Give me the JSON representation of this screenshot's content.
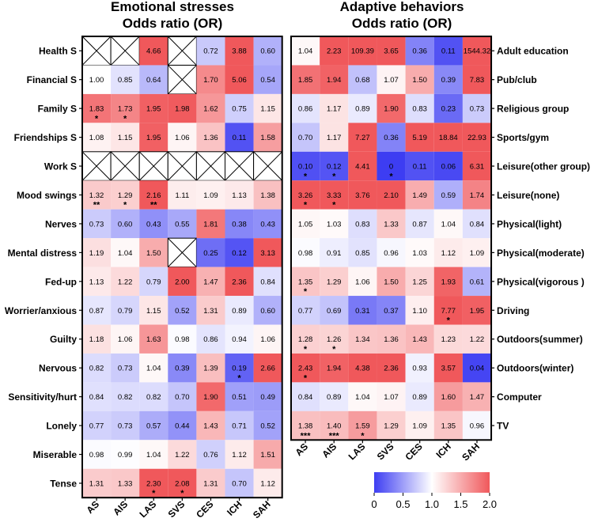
{
  "chart_data": [
    {
      "type": "heatmap",
      "title": "Emotional stresses",
      "subtitle": "Odds ratio (OR)",
      "columns": [
        "AS",
        "AIS",
        "LAS",
        "SVS",
        "CES",
        "ICH",
        "SAH"
      ],
      "rows": [
        {
          "label": "Health S",
          "values": [
            null,
            null,
            4.66,
            null,
            0.72,
            3.88,
            0.6
          ],
          "stars": [
            "",
            "",
            "",
            "",
            "",
            "",
            ""
          ]
        },
        {
          "label": "Financial S",
          "values": [
            1.0,
            0.85,
            0.64,
            null,
            1.7,
            5.06,
            0.54
          ],
          "stars": [
            "",
            "",
            "",
            "",
            "",
            "",
            ""
          ]
        },
        {
          "label": "Family S",
          "values": [
            1.83,
            1.73,
            1.95,
            1.98,
            1.62,
            0.75,
            1.15
          ],
          "stars": [
            "*",
            "*",
            "",
            "",
            "",
            "",
            ""
          ]
        },
        {
          "label": "Friendships S",
          "values": [
            1.08,
            1.15,
            1.95,
            1.06,
            1.36,
            0.11,
            1.58
          ],
          "stars": [
            "",
            "",
            "",
            "",
            "",
            "",
            ""
          ]
        },
        {
          "label": "Work S",
          "values": [
            null,
            null,
            null,
            null,
            null,
            null,
            null
          ],
          "stars": [
            "",
            "",
            "",
            "",
            "",
            "",
            ""
          ]
        },
        {
          "label": "Mood swings",
          "values": [
            1.32,
            1.29,
            2.16,
            1.11,
            1.09,
            1.13,
            1.38
          ],
          "stars": [
            "**",
            "*",
            "**",
            "",
            "",
            "",
            ""
          ]
        },
        {
          "label": "Nerves",
          "values": [
            0.73,
            0.6,
            0.43,
            0.55,
            1.81,
            0.38,
            0.43
          ],
          "stars": [
            "",
            "",
            "",
            "",
            "",
            "",
            ""
          ]
        },
        {
          "label": "Mental distress",
          "values": [
            1.19,
            1.04,
            1.5,
            null,
            0.25,
            0.12,
            3.13
          ],
          "stars": [
            "",
            "",
            "",
            "",
            "",
            "",
            ""
          ]
        },
        {
          "label": "Fed-up",
          "values": [
            1.13,
            1.22,
            0.79,
            2.0,
            1.47,
            2.36,
            0.84
          ],
          "stars": [
            "",
            "",
            "",
            "",
            "",
            "",
            ""
          ]
        },
        {
          "label": "Worrier/anxious",
          "values": [
            0.87,
            0.79,
            1.15,
            0.52,
            1.31,
            0.89,
            0.6
          ],
          "stars": [
            "",
            "",
            "",
            "",
            "",
            "",
            ""
          ]
        },
        {
          "label": "Guilty",
          "values": [
            1.18,
            1.06,
            1.63,
            0.98,
            0.86,
            0.94,
            1.06
          ],
          "stars": [
            "",
            "",
            "",
            "",
            "",
            "",
            ""
          ]
        },
        {
          "label": "Nervous",
          "values": [
            0.82,
            0.73,
            1.04,
            0.39,
            1.39,
            0.19,
            2.66
          ],
          "stars": [
            "",
            "",
            "",
            "",
            "",
            "*",
            ""
          ]
        },
        {
          "label": "Sensitivity/hurt",
          "values": [
            0.84,
            0.82,
            0.82,
            0.7,
            1.9,
            0.51,
            0.49
          ],
          "stars": [
            "",
            "",
            "",
            "",
            "",
            "",
            ""
          ]
        },
        {
          "label": "Lonely",
          "values": [
            0.77,
            0.73,
            0.57,
            0.44,
            1.43,
            0.71,
            0.52
          ],
          "stars": [
            "",
            "",
            "",
            "",
            "",
            "",
            ""
          ]
        },
        {
          "label": "Miserable",
          "values": [
            0.98,
            0.99,
            1.04,
            1.22,
            0.76,
            1.12,
            1.51
          ],
          "stars": [
            "",
            "",
            "",
            "",
            "",
            "",
            ""
          ]
        },
        {
          "label": "Tense",
          "values": [
            1.31,
            1.33,
            2.3,
            2.08,
            1.31,
            0.7,
            1.12
          ],
          "stars": [
            "",
            "",
            "*",
            "*",
            "",
            "",
            ""
          ]
        }
      ]
    },
    {
      "type": "heatmap",
      "title": "Adaptive behaviors",
      "subtitle": "Odds ratio (OR)",
      "columns": [
        "AS",
        "AIS",
        "LAS",
        "SVS",
        "CES",
        "ICH",
        "SAH"
      ],
      "rows": [
        {
          "label": "Adult education",
          "values": [
            1.04,
            2.23,
            109.39,
            3.65,
            0.36,
            0.11,
            1544.32
          ],
          "stars": [
            "",
            "",
            "",
            "",
            "",
            "",
            ""
          ]
        },
        {
          "label": "Pub/club",
          "values": [
            1.85,
            1.94,
            0.68,
            1.07,
            1.5,
            0.39,
            7.83
          ],
          "stars": [
            "",
            "",
            "",
            "",
            "",
            "",
            ""
          ]
        },
        {
          "label": "Religious group",
          "values": [
            0.86,
            1.17,
            0.89,
            1.9,
            0.83,
            0.23,
            0.73
          ],
          "stars": [
            "",
            "",
            "",
            "",
            "",
            "",
            ""
          ]
        },
        {
          "label": "Sports/gym",
          "values": [
            0.7,
            1.17,
            7.27,
            0.36,
            5.19,
            18.84,
            22.93
          ],
          "stars": [
            "",
            "",
            "",
            "",
            "",
            "",
            ""
          ]
        },
        {
          "label": "Leisure(other group)",
          "values": [
            0.1,
            0.12,
            4.41,
            0,
            0.11,
            0.06,
            6.31
          ],
          "stars": [
            "*",
            "*",
            "",
            "*",
            "",
            "",
            ""
          ]
        },
        {
          "label": "Leisure(none)",
          "values": [
            3.26,
            3.33,
            3.76,
            2.1,
            1.49,
            0.59,
            1.74
          ],
          "stars": [
            "*",
            "*",
            "",
            "",
            "",
            "",
            ""
          ]
        },
        {
          "label": "Physical(light)",
          "values": [
            1.05,
            1.03,
            0.83,
            1.33,
            0.87,
            1.04,
            0.84
          ],
          "stars": [
            "",
            "",
            "",
            "",
            "",
            "",
            ""
          ]
        },
        {
          "label": "Physical(moderate)",
          "values": [
            0.98,
            0.91,
            0.85,
            0.96,
            1.03,
            1.12,
            1.09
          ],
          "stars": [
            "",
            "",
            "",
            "",
            "",
            "",
            ""
          ]
        },
        {
          "label": "Physical(vigorous )",
          "values": [
            1.35,
            1.29,
            1.06,
            1.5,
            1.25,
            1.93,
            0.61
          ],
          "stars": [
            "*",
            "",
            "",
            "",
            "",
            "",
            ""
          ]
        },
        {
          "label": "Driving",
          "values": [
            0.77,
            0.69,
            0.31,
            0.37,
            1.1,
            7.77,
            1.95
          ],
          "stars": [
            "",
            "",
            "",
            "",
            "",
            "*",
            ""
          ]
        },
        {
          "label": "Outdoors(summer)",
          "values": [
            1.28,
            1.26,
            1.34,
            1.36,
            1.43,
            1.23,
            1.22
          ],
          "stars": [
            "*",
            "*",
            "",
            "",
            "",
            "",
            ""
          ]
        },
        {
          "label": "Outdoors(winter)",
          "values": [
            2.43,
            1.94,
            4.38,
            2.36,
            0.93,
            3.57,
            0.04
          ],
          "stars": [
            "*",
            "",
            "",
            "",
            "",
            "",
            ""
          ]
        },
        {
          "label": "Computer",
          "values": [
            0.84,
            0.89,
            1.04,
            1.07,
            0.89,
            1.6,
            1.47
          ],
          "stars": [
            "",
            "",
            "",
            "",
            "",
            "",
            ""
          ]
        },
        {
          "label": "TV",
          "values": [
            1.38,
            1.4,
            1.59,
            1.29,
            1.09,
            1.35,
            0.96
          ],
          "stars": [
            "***",
            "***",
            "*",
            "",
            "",
            "",
            ""
          ]
        }
      ]
    }
  ],
  "colorbar": {
    "min": 0,
    "center": 1.0,
    "max": 2.0,
    "ticks": [
      0,
      0.5,
      1.0,
      1.5,
      2.0
    ],
    "tick_labels": [
      "0",
      "0.5",
      "1.0",
      "1.5",
      "2.0"
    ],
    "low_color": "#3d3df2",
    "mid_color": "#ffffff",
    "high_color": "#f0585b"
  }
}
